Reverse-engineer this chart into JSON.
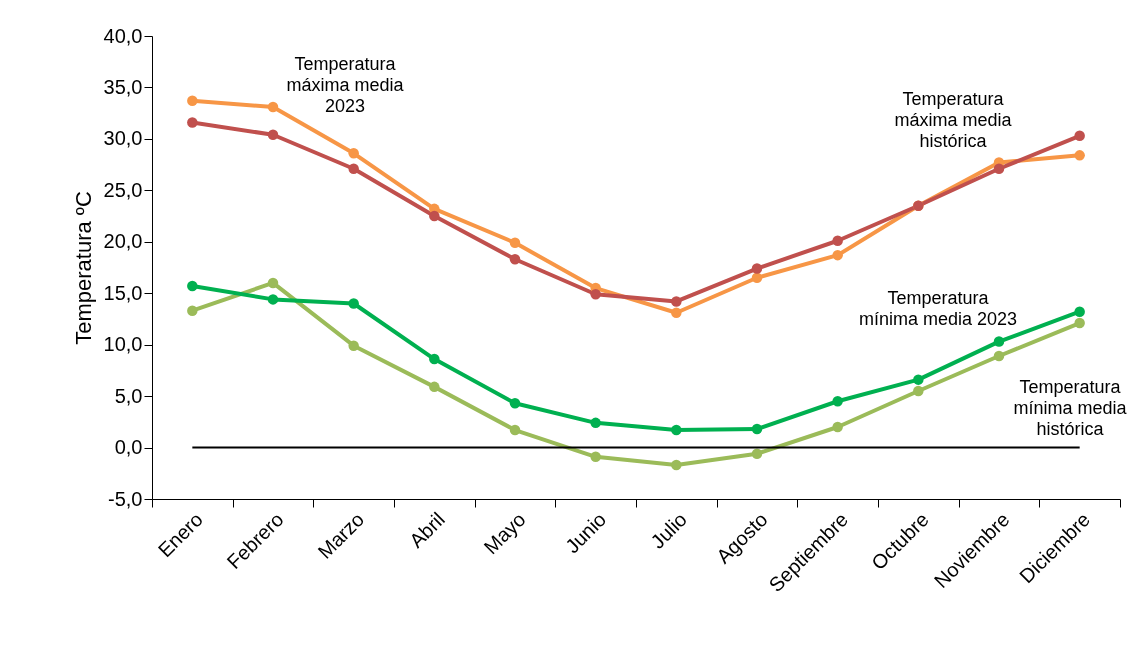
{
  "chart_data": {
    "type": "line",
    "ylabel": "Temperatura ºC",
    "categories": [
      "Enero",
      "Febrero",
      "Marzo",
      "Abril",
      "Mayo",
      "Junio",
      "Julio",
      "Agosto",
      "Septiembre",
      "Octubre",
      "Noviembre",
      "Diciembre"
    ],
    "series": [
      {
        "color": "#f79646",
        "values": [
          33.7,
          33.1,
          28.6,
          23.2,
          19.9,
          15.5,
          13.1,
          16.5,
          18.7,
          23.5,
          27.7,
          28.4
        ]
      },
      {
        "color": "#c0504d",
        "values": [
          31.6,
          30.4,
          27.1,
          22.5,
          18.3,
          14.9,
          14.2,
          17.4,
          20.1,
          23.5,
          27.1,
          30.3
        ]
      },
      {
        "color": "#9bbb59",
        "values": [
          13.3,
          16.0,
          9.9,
          5.9,
          1.7,
          -0.9,
          -1.7,
          -0.6,
          2.0,
          5.5,
          8.9,
          12.1
        ]
      },
      {
        "color": "#00b050",
        "values": [
          15.7,
          14.4,
          14.0,
          8.6,
          4.3,
          2.4,
          1.7,
          1.8,
          4.5,
          6.6,
          10.3,
          13.2
        ]
      }
    ],
    "ylim": [
      -5,
      40
    ],
    "yticks": [
      {
        "value": -5,
        "label": "-5,0"
      },
      {
        "value": 0,
        "label": "0,0"
      },
      {
        "value": 5,
        "label": "5,0"
      },
      {
        "value": 10,
        "label": "10,0"
      },
      {
        "value": 15,
        "label": "15,0"
      },
      {
        "value": 20,
        "label": "20,0"
      },
      {
        "value": 25,
        "label": "25,0"
      },
      {
        "value": 30,
        "label": "30,0"
      },
      {
        "value": 35,
        "label": "35,0"
      },
      {
        "value": 40,
        "label": "40,0"
      }
    ],
    "ref_lines": [
      {
        "axis": "y",
        "value": 0,
        "color": "#000000"
      }
    ],
    "annotations": [
      "Temperatura\nmáxima media\n2023",
      "Temperatura\nmáxima media\nhistórica",
      "Temperatura\nmínima media 2023",
      "Temperatura\nmínima media\nhistórica"
    ],
    "grid": false,
    "legend": false,
    "marker": "circle",
    "line_style": "solid"
  }
}
